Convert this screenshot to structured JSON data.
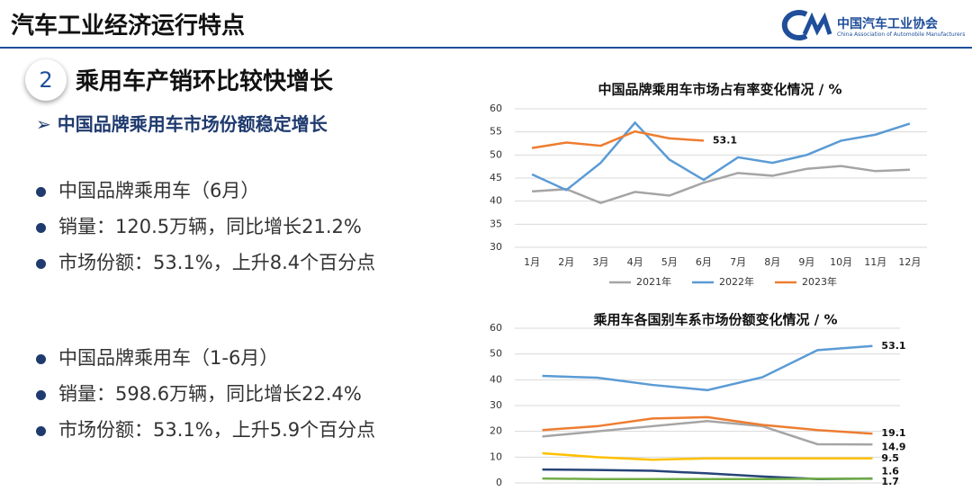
{
  "header": {
    "title": "汽车工业经济运行特点",
    "org_name": "中国汽车工业协会",
    "org_subtitle": "China Association of Automobile Manufacturers"
  },
  "section": {
    "number": "2",
    "title": "乘用车产销环比较快增长"
  },
  "subtitle": "中国品牌乘用车市场份额稳定增长",
  "bullets": [
    "中国品牌乘用车（6月）",
    "销量：120.5万辆，同比增长21.2%",
    "市场份额：53.1%，上升8.4个百分点",
    "中国品牌乘用车（1-6月）",
    "销量：598.6万辆，同比增长22.4%",
    "市场份额：53.1%，上升5.9个百分点"
  ],
  "chart_data": [
    {
      "type": "line",
      "title": "中国品牌乘用车市场占有率变化情况 / %",
      "categories": [
        "1月",
        "2月",
        "3月",
        "4月",
        "5月",
        "6月",
        "7月",
        "8月",
        "9月",
        "10月",
        "11月",
        "12月"
      ],
      "ylim": [
        30,
        60
      ],
      "yticks": [
        30,
        35,
        40,
        45,
        50,
        55,
        60
      ],
      "series": [
        {
          "name": "2021年",
          "color": "#a5a5a5",
          "values": [
            42.1,
            42.6,
            39.6,
            42.0,
            41.2,
            44.0,
            46.1,
            45.5,
            47.0,
            47.6,
            46.5,
            46.8
          ]
        },
        {
          "name": "2022年",
          "color": "#5b9bd5",
          "values": [
            45.8,
            42.4,
            48.3,
            57.0,
            49.0,
            44.6,
            49.5,
            48.3,
            50.0,
            53.1,
            54.4,
            56.8
          ]
        },
        {
          "name": "2023年",
          "color": "#ed7d31",
          "values": [
            51.5,
            52.7,
            52.0,
            55.1,
            53.6,
            53.1,
            null,
            null,
            null,
            null,
            null,
            null
          ]
        }
      ],
      "legend": "bottom"
    },
    {
      "type": "line",
      "title": "乘用车各国别车系市场份额变化情况 / %",
      "categories": [
        null,
        null,
        null,
        null,
        null,
        null,
        null
      ],
      "ylim": [
        0,
        60
      ],
      "yticks": [
        0,
        10,
        20,
        30,
        40,
        50,
        60
      ],
      "series": [
        {
          "color": "#5b9bd5",
          "values": [
            41.5,
            40.8,
            38.0,
            36.0,
            41.0,
            51.5,
            53.1
          ]
        },
        {
          "color": "#a5a5a5",
          "values": [
            18.0,
            20.0,
            22.0,
            24.0,
            22.0,
            15.0,
            14.9
          ]
        },
        {
          "color": "#ed7d31",
          "values": [
            20.5,
            22.0,
            25.0,
            25.5,
            22.5,
            20.5,
            19.1
          ]
        },
        {
          "color": "#ffc000",
          "values": [
            11.5,
            10.0,
            9.0,
            9.5,
            9.5,
            9.5,
            9.5
          ]
        },
        {
          "color": "#264478",
          "values": [
            5.2,
            5.0,
            4.7,
            3.7,
            2.5,
            1.5,
            1.7
          ]
        },
        {
          "color": "#70ad47",
          "values": [
            1.7,
            1.5,
            1.5,
            1.5,
            1.5,
            1.6,
            1.6
          ]
        }
      ]
    }
  ]
}
